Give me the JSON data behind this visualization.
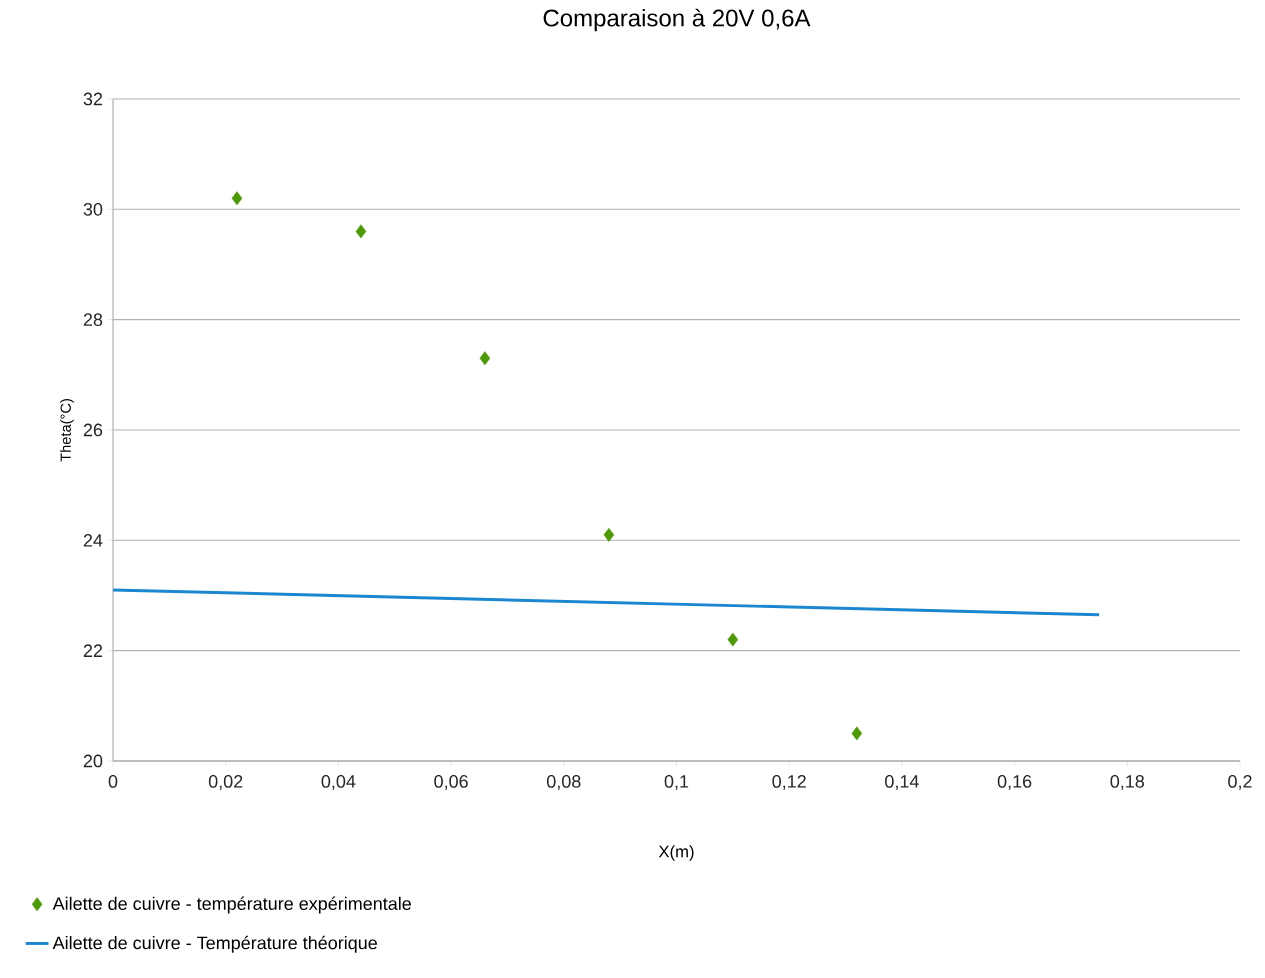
{
  "chart_data": {
    "type": "scatter",
    "title": "Comparaison à 20V 0,6A",
    "xlabel": "X(m)",
    "ylabel": "Theta(°C)",
    "xlim": [
      0,
      0.2
    ],
    "ylim": [
      20,
      32
    ],
    "xticks": [
      {
        "value": 0,
        "label": "0"
      },
      {
        "value": 0.02,
        "label": "0,02"
      },
      {
        "value": 0.04,
        "label": "0,04"
      },
      {
        "value": 0.06,
        "label": "0,06"
      },
      {
        "value": 0.08,
        "label": "0,08"
      },
      {
        "value": 0.1,
        "label": "0,1"
      },
      {
        "value": 0.12,
        "label": "0,12"
      },
      {
        "value": 0.14,
        "label": "0,14"
      },
      {
        "value": 0.16,
        "label": "0,16"
      },
      {
        "value": 0.18,
        "label": "0,18"
      },
      {
        "value": 0.2,
        "label": "0,2"
      }
    ],
    "yticks": [
      20,
      22,
      24,
      26,
      28,
      30,
      32
    ],
    "grid": "y",
    "legend": "bottom",
    "series": [
      {
        "name": "Ailette de cuivre -  température expérimentale",
        "marker": "diamond",
        "color": "#4e9a06",
        "x": [
          0.022,
          0.044,
          0.066,
          0.088,
          0.11,
          0.132
        ],
        "values": [
          30.2,
          29.6,
          27.3,
          24.1,
          22.2,
          20.5
        ]
      },
      {
        "name": "Ailette de cuivre -  Température théorique",
        "type": "line",
        "marker": "none",
        "line_style": "solid",
        "color": "#1b87d0",
        "x": [
          0,
          0.175
        ],
        "values": [
          23.1,
          22.65
        ]
      }
    ]
  }
}
